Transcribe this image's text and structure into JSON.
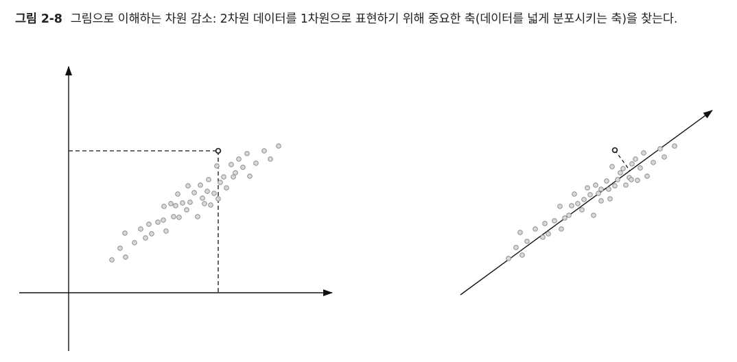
{
  "caption": {
    "figure_label": "그림 2-8",
    "text": "그림으로 이해하는 차원 감소: 2차원 데이터를 1차원으로 표현하기 위해 중요한 축(데이터를 넓게 분포시키는 축)을 찾는다."
  },
  "colors": {
    "axis": "#111111",
    "point_fill": "#d9d9d9",
    "point_stroke": "#8a8a8a",
    "highlight_fill": "#ffffff",
    "highlight_stroke": "#222222"
  }
}
